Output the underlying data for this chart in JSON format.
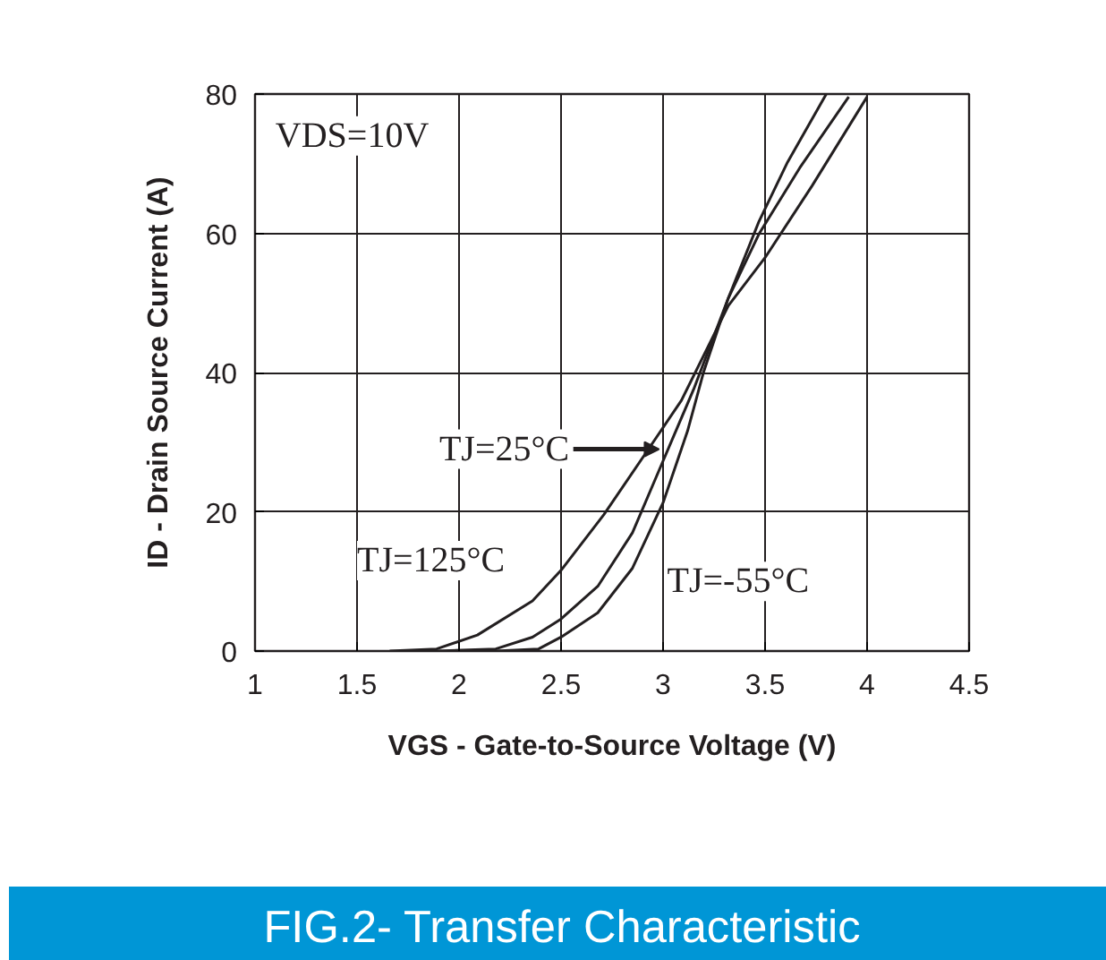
{
  "chart_data": {
    "type": "line",
    "title": "FIG.2-  Transfer  Characteristic",
    "xlabel": "VGS - Gate-to-Source Voltage (V)",
    "ylabel": "ID - Drain Source Current (A)",
    "annotations": [
      "VDS=10V"
    ],
    "xlim": [
      1,
      4.5
    ],
    "xticks": [
      1,
      1.5,
      2,
      2.5,
      3,
      3.5,
      4,
      4.5
    ],
    "ylim": [
      0,
      80
    ],
    "yticks": [
      0,
      20,
      40,
      60,
      80
    ],
    "grid": true,
    "marker": "none",
    "line_style": "solid",
    "series": [
      {
        "name": "TJ=125°C",
        "color": "#231f20",
        "x": [
          1.66,
          1.89,
          2.09,
          2.36,
          2.5,
          2.71,
          2.91,
          3.09,
          3.32,
          3.5,
          3.73,
          4.0
        ],
        "values": [
          0,
          0.3,
          2.3,
          7.2,
          11.6,
          19.6,
          28.2,
          36,
          49.6,
          56.5,
          66.8,
          79.6
        ]
      },
      {
        "name": "TJ=25°C",
        "color": "#231f20",
        "x": [
          1.89,
          2.18,
          2.36,
          2.5,
          2.68,
          2.85,
          3.0,
          3.15,
          3.32,
          3.47,
          3.67,
          3.91
        ],
        "values": [
          0,
          0.3,
          2,
          4.6,
          9.3,
          17,
          27.3,
          37.6,
          50.7,
          59.9,
          69.4,
          79.6
        ]
      },
      {
        "name": "TJ=-55°C",
        "color": "#231f20",
        "x": [
          2.18,
          2.39,
          2.5,
          2.68,
          2.85,
          3.0,
          3.12,
          3.2,
          3.32,
          3.47,
          3.61,
          3.8
        ],
        "values": [
          0,
          0.3,
          2,
          5.5,
          11.9,
          21.3,
          31.6,
          40.2,
          50.7,
          61.7,
          70.2,
          80
        ]
      }
    ]
  }
}
